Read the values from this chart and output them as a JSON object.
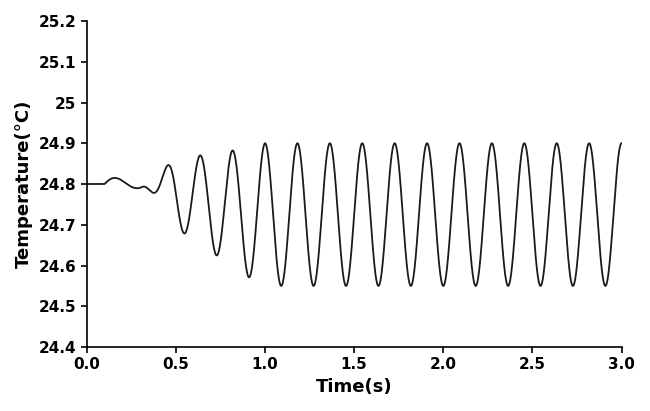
{
  "xlabel": "Time(s)",
  "ylabel": "Temperature(°C)",
  "xlim": [
    0,
    3
  ],
  "ylim": [
    24.4,
    25.2
  ],
  "xticks": [
    0,
    0.5,
    1,
    1.5,
    2,
    2.5,
    3
  ],
  "ytick_values": [
    24.4,
    24.5,
    24.6,
    24.7,
    24.8,
    24.9,
    25.0,
    25.1,
    25.2
  ],
  "ytick_labels": [
    "24.4",
    "24.5",
    "24.6",
    "24.7",
    "24.8",
    "24.9",
    "25",
    "25.1",
    "25.2"
  ],
  "line_color": "#1a1a1a",
  "line_width": 1.3,
  "background_color": "#ffffff",
  "xlabel_fontsize": 13,
  "ylabel_fontsize": 13,
  "tick_fontsize": 11,
  "signal_params": {
    "t_end": 3.0,
    "n_points": 5000,
    "base_temp": 24.8,
    "freq": 5.5,
    "amp_stable": 0.175,
    "amp_ramp_start": 0.3,
    "amp_ramp_end": 1.0,
    "mean_stable": 24.725,
    "mean_ramp_start": 0.3,
    "mean_ramp_end": 0.95
  }
}
